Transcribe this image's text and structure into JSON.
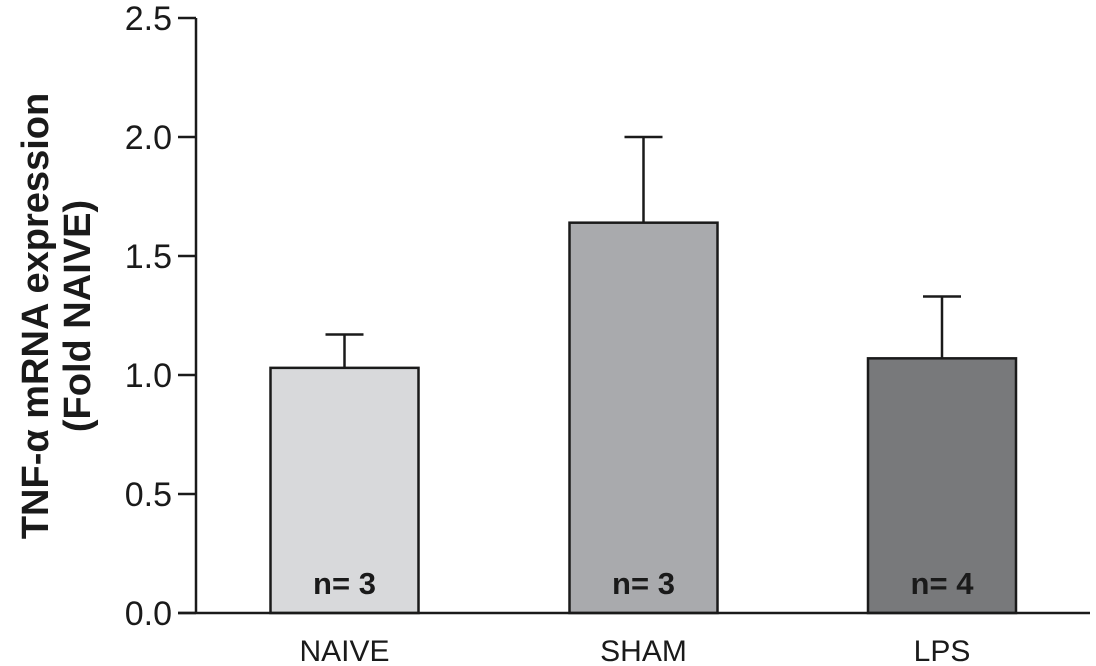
{
  "chart_data": {
    "type": "bar",
    "title": "",
    "xlabel": "",
    "ylabel": "TNF-α mRNA expression",
    "ylabel_line2": "(Fold NAIVE)",
    "ylim": [
      0,
      2.5
    ],
    "yticks": [
      "0.0",
      "0.5",
      "1.0",
      "1.5",
      "2.0",
      "2.5"
    ],
    "categories": [
      "NAIVE",
      "SHAM",
      "LPS"
    ],
    "values": [
      1.03,
      1.64,
      1.07
    ],
    "errors": [
      0.14,
      0.36,
      0.26
    ],
    "annotations": [
      "n= 3",
      "n= 3",
      "n= 4"
    ],
    "colors": [
      "#d8d9db",
      "#a9aaad",
      "#78797b"
    ],
    "grid": false,
    "legend": "none"
  }
}
